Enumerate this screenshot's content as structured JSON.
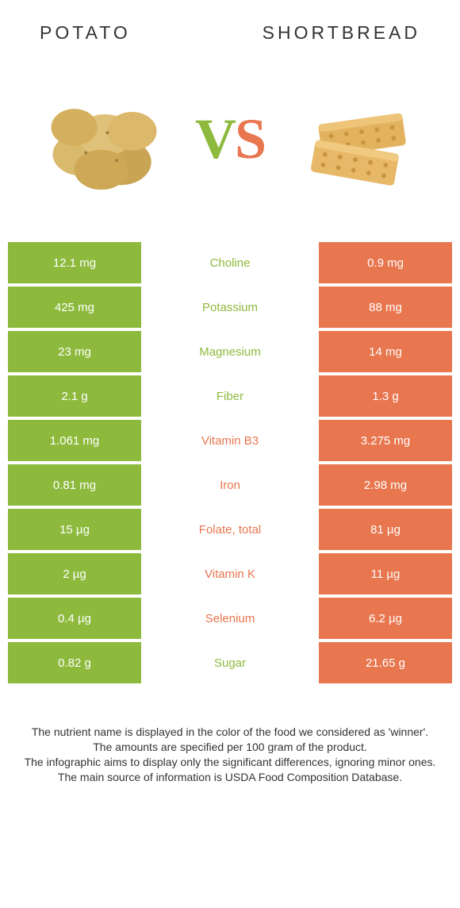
{
  "header": {
    "left_title": "POTATO",
    "right_title": "SHORTBREAD"
  },
  "vs": {
    "v": "V",
    "s": "S"
  },
  "colors": {
    "left_cell_bg": "#8dba3d",
    "right_cell_bg": "#e8764e",
    "left_label": "#8dba3d",
    "right_label": "#e8764e",
    "vs_v": "#8dba3d",
    "vs_s": "#e8764e",
    "row_gap_bg": "#ffffff"
  },
  "rows": [
    {
      "left": "12.1 mg",
      "label": "Choline",
      "right": "0.9 mg",
      "winner": "left"
    },
    {
      "left": "425 mg",
      "label": "Potassium",
      "right": "88 mg",
      "winner": "left"
    },
    {
      "left": "23 mg",
      "label": "Magnesium",
      "right": "14 mg",
      "winner": "left"
    },
    {
      "left": "2.1 g",
      "label": "Fiber",
      "right": "1.3 g",
      "winner": "left"
    },
    {
      "left": "1.061 mg",
      "label": "Vitamin B3",
      "right": "3.275 mg",
      "winner": "right"
    },
    {
      "left": "0.81 mg",
      "label": "Iron",
      "right": "2.98 mg",
      "winner": "right"
    },
    {
      "left": "15 µg",
      "label": "Folate, total",
      "right": "81 µg",
      "winner": "right"
    },
    {
      "left": "2 µg",
      "label": "Vitamin K",
      "right": "11 µg",
      "winner": "right"
    },
    {
      "left": "0.4 µg",
      "label": "Selenium",
      "right": "6.2 µg",
      "winner": "right"
    },
    {
      "left": "0.82 g",
      "label": "Sugar",
      "right": "21.65 g",
      "winner": "left"
    }
  ],
  "footer": {
    "line1": "The nutrient name is displayed in the color of the food we considered as 'winner'.",
    "line2": "The amounts are specified per 100 gram of the product.",
    "line3": "The infographic aims to display only the significant differences, ignoring minor ones.",
    "line4": "The main source of information is USDA Food Composition Database."
  },
  "images": {
    "left_alt": "potato-illustration",
    "right_alt": "shortbread-illustration"
  }
}
